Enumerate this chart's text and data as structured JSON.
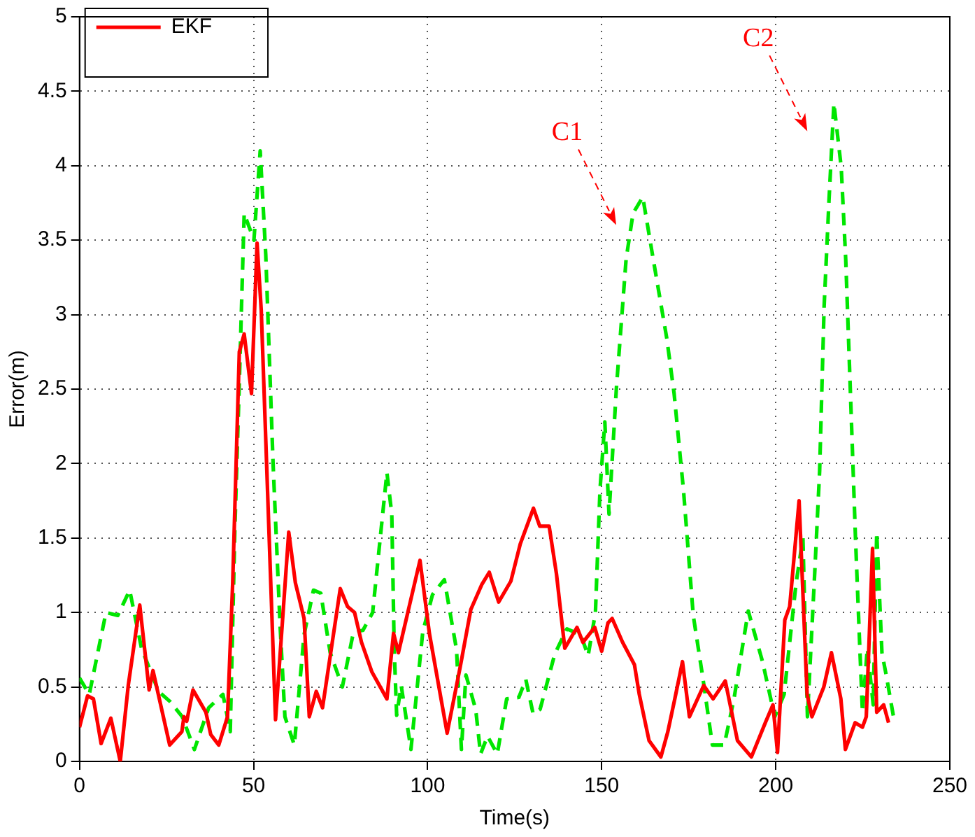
{
  "chart_data": {
    "type": "line",
    "xlabel": "Time(s)",
    "ylabel": "Error(m)",
    "xlim": [
      0,
      250
    ],
    "xticks": [
      0,
      50,
      100,
      150,
      200,
      250
    ],
    "ylim": [
      0,
      5
    ],
    "yticks": [
      0,
      0.5,
      1,
      1.5,
      2,
      2.5,
      3,
      3.5,
      4,
      4.5,
      5
    ],
    "grid": true,
    "legend": "top left",
    "marker": "none",
    "annotations": [
      {
        "text": "C1",
        "x": 161.8,
        "y": 3.79
      },
      {
        "text": "C2",
        "x": 216.7,
        "y": 4.42
      }
    ],
    "series": [
      {
        "name": "EKF",
        "color": "#ff0000",
        "line_style": "solid",
        "x": [
          0,
          2.3,
          4,
          6.2,
          9,
          11.7,
          14,
          17.3,
          20,
          21.1,
          25.9,
          29.4,
          30,
          30.8,
          32.6,
          36.3,
          37.7,
          40,
          42.5,
          44,
          45.9,
          47.3,
          49.4,
          51,
          52.2,
          53.5,
          56.3,
          60.1,
          62,
          64.5,
          66,
          68,
          69.8,
          74.9,
          77,
          79,
          81,
          84,
          88.3,
          90.2,
          91.6,
          97.8,
          100.5,
          105.6,
          109.4,
          112.4,
          115.6,
          117.7,
          120.4,
          123.9,
          126.6,
          130.4,
          132.2,
          134.9,
          137,
          139.4,
          142.9,
          144.6,
          148,
          150,
          151.8,
          153,
          156,
          159.4,
          160.8,
          163.6,
          167,
          169,
          171,
          173.2,
          175.2,
          179.3,
          182,
          185.5,
          189,
          193,
          197,
          199.2,
          200.5,
          202.6,
          204,
          206.7,
          209,
          210.4,
          213.8,
          216,
          218.7,
          220,
          222.8,
          224.9,
          226,
          227.8,
          229,
          231,
          232.4
        ],
        "values": [
          0.23,
          0.44,
          0.42,
          0.12,
          0.29,
          0,
          0.51,
          1.05,
          0.48,
          0.61,
          0.11,
          0.2,
          0.3,
          0.27,
          0.48,
          0.33,
          0.18,
          0.11,
          0.3,
          1.2,
          2.75,
          2.87,
          2.47,
          3.48,
          3.03,
          2.16,
          0.28,
          1.54,
          1.2,
          0.96,
          0.3,
          0.47,
          0.36,
          1.16,
          1.04,
          1.0,
          0.8,
          0.6,
          0.42,
          0.86,
          0.73,
          1.35,
          0.86,
          0.19,
          0.64,
          1.02,
          1.19,
          1.27,
          1.07,
          1.21,
          1.46,
          1.7,
          1.58,
          1.58,
          1.26,
          0.76,
          0.9,
          0.8,
          0.9,
          0.74,
          0.93,
          0.96,
          0.8,
          0.65,
          0.45,
          0.14,
          0.03,
          0.2,
          0.42,
          0.67,
          0.3,
          0.51,
          0.42,
          0.54,
          0.14,
          0.03,
          0.26,
          0.38,
          0.06,
          0.95,
          1.04,
          1.75,
          0.45,
          0.3,
          0.5,
          0.73,
          0.42,
          0.08,
          0.26,
          0.23,
          0.3,
          1.43,
          0.33,
          0.38,
          0.26
        ]
      },
      {
        "color": "#00e600",
        "line_style": "dashed",
        "x": [
          0,
          2.8,
          7.6,
          11,
          14.4,
          17.8,
          22.7,
          26.1,
          29.5,
          33,
          37.1,
          41.2,
          43.3,
          44.6,
          46,
          47.3,
          50.1,
          51.9,
          53.5,
          55.6,
          57.6,
          59,
          61.7,
          64.5,
          67.2,
          69.3,
          72,
          75.5,
          78.7,
          81.4,
          84.2,
          88.3,
          89.7,
          90.4,
          91.1,
          92.4,
          95.2,
          98.6,
          101.4,
          104.8,
          108.3,
          109.7,
          111,
          113.8,
          115.2,
          117.2,
          120,
          122.7,
          126.2,
          128.2,
          130.3,
          132.3,
          136.5,
          140,
          144,
          146.1,
          148.2,
          149.5,
          150.9,
          152.1,
          154.2,
          157,
          159,
          161.8,
          164.6,
          168.7,
          170.8,
          173.5,
          176.3,
          179,
          181.8,
          185.2,
          188,
          192.1,
          196.2,
          199.7,
          202.4,
          205.8,
          207.8,
          209.1,
          211.2,
          212.6,
          213.9,
          215.3,
          216.7,
          218.8,
          220.1,
          221.5,
          222.9,
          224.2,
          224.9,
          226.3,
          228,
          229,
          230.5,
          231.8,
          233.9
        ],
        "values": [
          0.56,
          0.45,
          1.0,
          0.98,
          1.15,
          0.76,
          0.47,
          0.4,
          0.3,
          0.08,
          0.36,
          0.45,
          0.2,
          1.54,
          2.62,
          3.68,
          3.5,
          4.1,
          3.4,
          2.0,
          0.92,
          0.3,
          0.11,
          0.85,
          1.15,
          1.13,
          0.73,
          0.5,
          0.87,
          0.88,
          1.0,
          1.94,
          1.66,
          0.75,
          0.31,
          0.51,
          0.08,
          0.87,
          1.12,
          1.22,
          0.75,
          0.08,
          0.58,
          0.35,
          0.05,
          0.17,
          0.05,
          0.42,
          0.43,
          0.55,
          0.32,
          0.35,
          0.72,
          0.89,
          0.85,
          0.71,
          1.0,
          1.82,
          2.28,
          1.66,
          2.5,
          3.37,
          3.68,
          3.79,
          3.4,
          2.84,
          2.47,
          1.82,
          0.98,
          0.57,
          0.11,
          0.11,
          0.42,
          1.01,
          0.67,
          0.3,
          0.45,
          1.19,
          1.5,
          0.3,
          1.27,
          1.95,
          3.06,
          3.77,
          4.42,
          3.99,
          3.37,
          2.44,
          1.5,
          0.73,
          0.33,
          0.76,
          0.38,
          1.54,
          0.73,
          0.57,
          0.29
        ]
      }
    ]
  }
}
